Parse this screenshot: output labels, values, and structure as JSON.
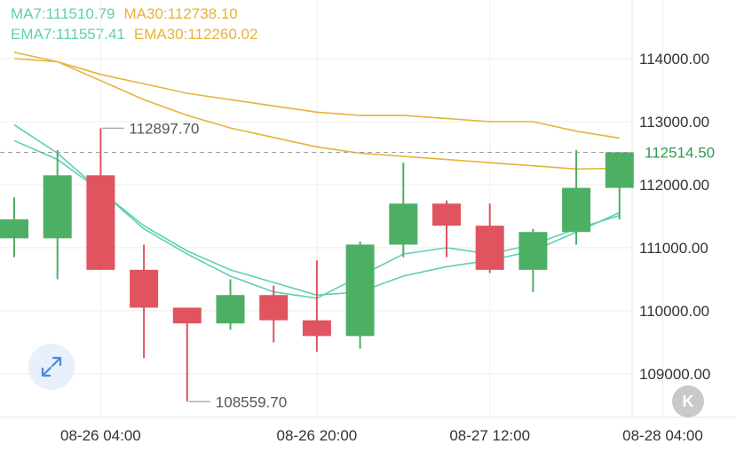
{
  "legend": {
    "ma7": "MA7:111510.79",
    "ma30": "MA30:112738.10",
    "ema7": "EMA7:111557.41",
    "ema30": "EMA30:112260.02"
  },
  "colors": {
    "up": "#4caf63",
    "down": "#e0545f",
    "ma7": "#5fcfb4",
    "ema7": "#5fcfb4",
    "ma30": "#e8b33a",
    "ema30": "#e8b33a",
    "grid": "#eeeeee",
    "last_price": "#2e9e4f"
  },
  "buttons": {
    "expand_icon": "expand-arrows-icon",
    "k_label": "K"
  },
  "chart_data": {
    "type": "candlestick",
    "y_axis_labels": [
      "114000.00",
      "113000.00",
      "112000.00",
      "111000.00",
      "110000.00",
      "109000.00"
    ],
    "y_ticks": [
      114000,
      113000,
      112000,
      111000,
      110000,
      109000
    ],
    "ylim": [
      108300,
      115000
    ],
    "x_axis_labels": [
      "08-26 04:00",
      "08-26 20:00",
      "08-27 12:00",
      "08-28 04:00"
    ],
    "x_label_at_candle": [
      2,
      7,
      11,
      15
    ],
    "candles": [
      {
        "open": 111150,
        "close": 111450,
        "high": 111800,
        "low": 110850
      },
      {
        "open": 111150,
        "close": 112150,
        "high": 112550,
        "low": 110500
      },
      {
        "open": 112150,
        "close": 110650,
        "high": 112897.7,
        "low": 110650
      },
      {
        "open": 110650,
        "close": 110050,
        "high": 111050,
        "low": 109250
      },
      {
        "open": 110050,
        "close": 109800,
        "high": 110050,
        "low": 108559.7
      },
      {
        "open": 109800,
        "close": 110250,
        "high": 110500,
        "low": 109700
      },
      {
        "open": 110250,
        "close": 109850,
        "high": 110400,
        "low": 109500
      },
      {
        "open": 109850,
        "close": 109600,
        "high": 110800,
        "low": 109350
      },
      {
        "open": 109600,
        "close": 111050,
        "high": 111100,
        "low": 109400
      },
      {
        "open": 111050,
        "close": 111700,
        "high": 112350,
        "low": 110850
      },
      {
        "open": 111700,
        "close": 111350,
        "high": 111750,
        "low": 110850
      },
      {
        "open": 111350,
        "close": 110650,
        "high": 111700,
        "low": 110600
      },
      {
        "open": 110650,
        "close": 111250,
        "high": 111300,
        "low": 110300
      },
      {
        "open": 111250,
        "close": 111950,
        "high": 112550,
        "low": 111050
      },
      {
        "open": 111950,
        "close": 112514.5,
        "high": 112514.5,
        "low": 111450
      }
    ],
    "ma7": [
      112950,
      112500,
      111900,
      111300,
      110900,
      110550,
      110300,
      110200,
      110550,
      110900,
      111000,
      110900,
      111050,
      111300,
      111510.79
    ],
    "ema7": [
      112700,
      112400,
      111900,
      111350,
      110950,
      110650,
      110450,
      110250,
      110300,
      110550,
      110700,
      110800,
      110950,
      111250,
      111557.41
    ],
    "ma30": [
      114100,
      113950,
      113750,
      113600,
      113450,
      113350,
      113250,
      113150,
      113100,
      113100,
      113050,
      113000,
      113000,
      112850,
      112738.1
    ],
    "ema30": [
      114000,
      113950,
      113650,
      113350,
      113100,
      112900,
      112750,
      112600,
      112500,
      112450,
      112400,
      112350,
      112300,
      112250,
      112260.02
    ],
    "last_price": "112514.50",
    "last_price_value": 112514.5,
    "max_label": "112897.70",
    "max_candle": 2,
    "min_label": "108559.70",
    "min_candle": 4,
    "grid": true
  }
}
